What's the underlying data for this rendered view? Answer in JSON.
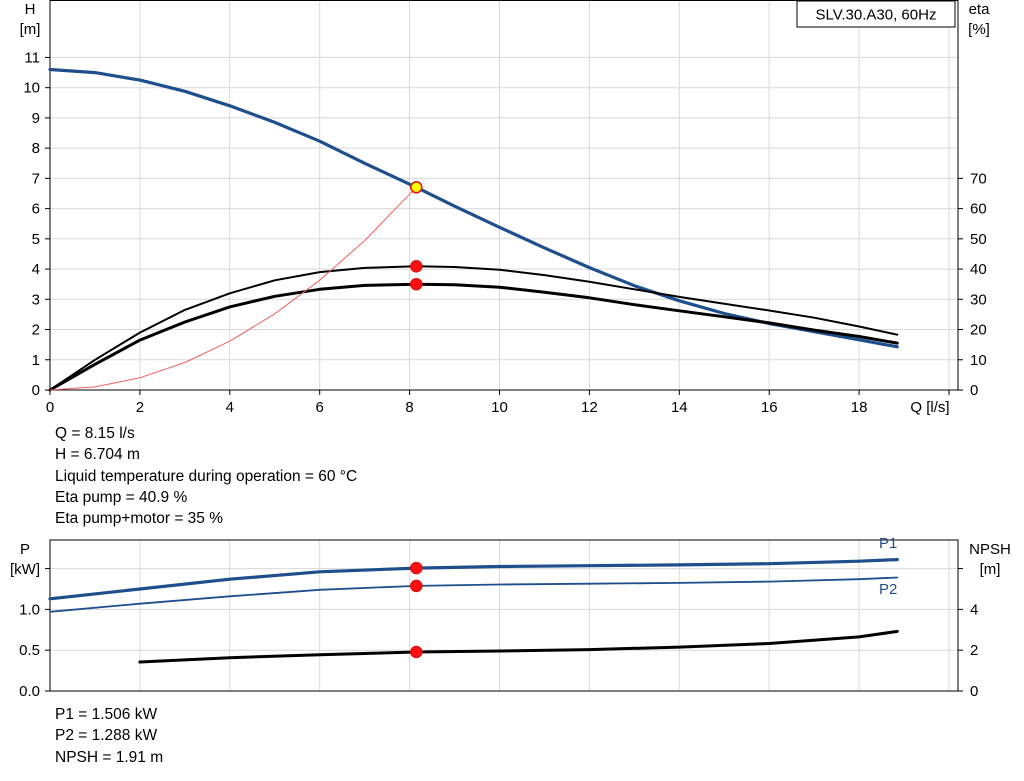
{
  "chart_data": [
    {
      "type": "line",
      "title": "SLV.30.A30, 60Hz",
      "xlabel": "Q [l/s]",
      "ylabel_left": [
        "H",
        "[m]"
      ],
      "ylabel_right": [
        "eta",
        "[%]"
      ],
      "xlim": [
        0,
        20.2
      ],
      "ylim_left": [
        0,
        12.9
      ],
      "ylim_right": [
        0,
        129
      ],
      "x_ticks": [
        0,
        2,
        4,
        6,
        8,
        10,
        12,
        14,
        16,
        18
      ],
      "y_ticks_left": [
        0,
        1,
        2,
        3,
        4,
        5,
        6,
        7,
        8,
        9,
        10,
        11
      ],
      "y_ticks_right": [
        0,
        10,
        20,
        30,
        40,
        50,
        60,
        70
      ],
      "grid": true,
      "series": [
        {
          "axis": "left",
          "color": "#1f4e8c",
          "x": [
            0,
            1,
            2,
            3,
            4,
            5,
            6,
            7,
            8.15,
            9,
            10,
            11,
            12,
            13,
            14,
            15,
            16,
            17,
            18,
            18.85
          ],
          "y": [
            10.6,
            10.5,
            10.25,
            9.88,
            9.4,
            8.85,
            8.23,
            7.5,
            6.704,
            6.08,
            5.38,
            4.7,
            4.05,
            3.45,
            2.95,
            2.53,
            2.2,
            1.93,
            1.66,
            1.43
          ]
        },
        {
          "axis": "right",
          "color": "#000000",
          "x": [
            0,
            1,
            2,
            3,
            4,
            5,
            6,
            7,
            8.15,
            9,
            10,
            11,
            12,
            13,
            14,
            15,
            16,
            17,
            18,
            18.85
          ],
          "y": [
            0,
            10,
            19,
            26.5,
            32,
            36.3,
            39,
            40.4,
            40.9,
            40.7,
            39.8,
            38,
            35.8,
            33.3,
            30.8,
            28.5,
            26.3,
            23.9,
            21,
            18.3
          ]
        },
        {
          "axis": "right",
          "color": "#000000",
          "width": 3,
          "x": [
            0,
            1,
            2,
            3,
            4,
            5,
            6,
            7,
            8.15,
            9,
            10,
            11,
            12,
            13,
            14,
            15,
            16,
            17,
            18,
            18.85
          ],
          "y": [
            0,
            8.5,
            16.5,
            22.5,
            27.5,
            31,
            33.3,
            34.6,
            35,
            34.8,
            34,
            32.3,
            30.5,
            28.2,
            26.2,
            24.2,
            22.2,
            19.8,
            17.7,
            15.5
          ]
        },
        {
          "axis": "left",
          "color": "#f06060",
          "width": 1,
          "x": [
            0,
            1,
            2,
            3,
            4,
            5,
            6,
            7,
            8.15
          ],
          "y": [
            0,
            0.101,
            0.404,
            0.908,
            1.614,
            2.522,
            3.632,
            4.943,
            6.704
          ]
        }
      ],
      "points": [
        {
          "x": 8.15,
          "y": 6.704,
          "axis": "left",
          "fill": "#ffff00",
          "stroke": "#e01010"
        },
        {
          "x": 8.15,
          "y": 40.9,
          "axis": "right",
          "fill": "#ff1010",
          "stroke": "#e01010"
        },
        {
          "x": 8.15,
          "y": 35,
          "axis": "right",
          "fill": "#ff1010",
          "stroke": "#e01010"
        }
      ]
    },
    {
      "type": "line",
      "ylabel_left": [
        "P",
        "[kW]"
      ],
      "ylabel_right": [
        "NPSH",
        "[m]"
      ],
      "xlim": [
        0,
        20.2
      ],
      "ylim_left": [
        0,
        1.85
      ],
      "ylim_right": [
        0,
        7.4
      ],
      "x_grid": [
        2,
        4,
        6,
        8,
        10,
        12,
        14,
        16,
        18,
        20
      ],
      "y_ticks_left": [
        {
          "v": 0,
          "l": "0.0"
        },
        {
          "v": 0.5,
          "l": "0.5"
        },
        {
          "v": 1.0,
          "l": "1.0"
        },
        {
          "v": 1.5,
          "l": ""
        }
      ],
      "y_ticks_right": [
        {
          "v": 0,
          "l": "0"
        },
        {
          "v": 2,
          "l": "2"
        },
        {
          "v": 4,
          "l": "4"
        },
        {
          "v": 6,
          "l": ""
        }
      ],
      "grid": true,
      "series": [
        {
          "name": "P1",
          "axis": "left",
          "color": "#1f4e8c",
          "width": 3.2,
          "label_x": 18.85,
          "label_y": 1.75,
          "x": [
            0,
            2,
            4,
            6,
            8.15,
            10,
            12,
            14,
            16,
            18,
            18.85
          ],
          "y": [
            1.13,
            1.25,
            1.37,
            1.46,
            1.506,
            1.525,
            1.535,
            1.545,
            1.56,
            1.59,
            1.61
          ]
        },
        {
          "name": "P2",
          "axis": "left",
          "color": "#1f4e8c",
          "width": 1.8,
          "label_x": 18.85,
          "label_y": 1.19,
          "x": [
            0,
            2,
            4,
            6,
            8.15,
            10,
            12,
            14,
            16,
            18,
            18.85
          ],
          "y": [
            0.97,
            1.07,
            1.16,
            1.24,
            1.288,
            1.305,
            1.315,
            1.325,
            1.34,
            1.37,
            1.39
          ]
        },
        {
          "axis": "right",
          "color": "#000000",
          "width": 3,
          "x": [
            2,
            4,
            6,
            8.15,
            10,
            12,
            14,
            16,
            18,
            18.85
          ],
          "y": [
            1.42,
            1.63,
            1.78,
            1.91,
            1.96,
            2.03,
            2.15,
            2.33,
            2.65,
            2.92
          ]
        }
      ],
      "points": [
        {
          "x": 8.15,
          "y": 1.506,
          "axis": "left",
          "fill": "#ff1010",
          "stroke": "#e01010"
        },
        {
          "x": 8.15,
          "y": 1.288,
          "axis": "left",
          "fill": "#ff1010",
          "stroke": "#e01010"
        },
        {
          "x": 8.15,
          "y": 1.91,
          "axis": "right",
          "fill": "#ff1010",
          "stroke": "#e01010"
        }
      ]
    }
  ],
  "info_top": [
    "Q = 8.15 l/s",
    "H = 6.704 m",
    "Liquid temperature during operation = 60 °C",
    "Eta pump = 40.9 %",
    "Eta pump+motor = 35 %"
  ],
  "info_bottom": [
    "P1 = 1.506 kW",
    "P2 = 1.288 kW",
    "NPSH = 1.91 m"
  ]
}
